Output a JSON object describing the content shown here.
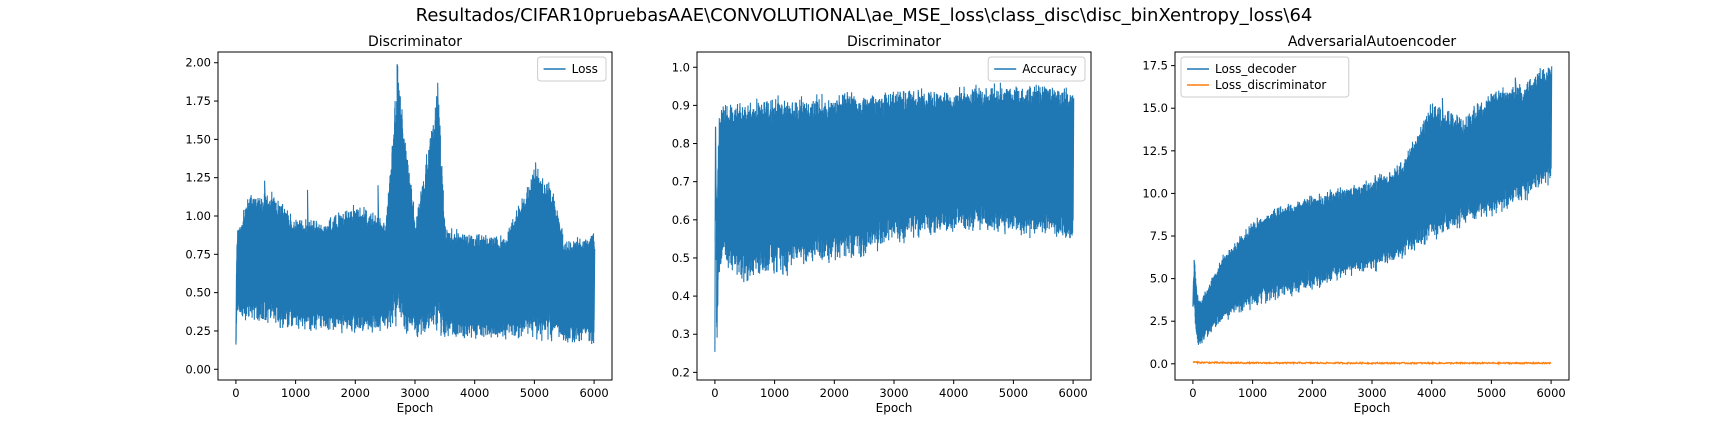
{
  "figure": {
    "suptitle": "Resultados/CIFAR10pruebasAAE\\CONVOLUTIONAL\\ae_MSE_loss\\class_disc\\disc_binXentropy_loss\\64"
  },
  "colors": {
    "blue": "#1f77b4",
    "orange": "#ff7f0e"
  },
  "chart_data": [
    {
      "type": "line",
      "title": "Discriminator",
      "xlabel": "Epoch",
      "ylabel": "",
      "xlim": [
        -300,
        6300
      ],
      "ylim": [
        -0.07,
        2.07
      ],
      "xticks": [
        0,
        1000,
        2000,
        3000,
        4000,
        5000,
        6000
      ],
      "xtick_labels": [
        "0",
        "1000",
        "2000",
        "3000",
        "4000",
        "5000",
        "6000"
      ],
      "yticks": [
        0,
        0.25,
        0.5,
        0.75,
        1.0,
        1.25,
        1.5,
        1.75,
        2.0
      ],
      "ytick_labels": [
        "0.00",
        "0.25",
        "0.50",
        "0.75",
        "1.00",
        "1.25",
        "1.50",
        "1.75",
        "2.00"
      ],
      "legend_position": "top-right",
      "series": [
        {
          "name": "Loss",
          "color": "#1f77b4",
          "x": [
            0,
            20,
            50,
            100,
            200,
            300,
            500,
            1000,
            1500,
            2000,
            2500,
            2700,
            3000,
            3380,
            3500,
            4000,
            4500,
            5000,
            5300,
            5500,
            6000
          ],
          "y_low": [
            0.03,
            0.35,
            0.32,
            0.3,
            0.29,
            0.28,
            0.27,
            0.25,
            0.23,
            0.22,
            0.21,
            0.21,
            0.2,
            0.2,
            0.19,
            0.19,
            0.18,
            0.17,
            0.17,
            0.16,
            0.15
          ],
          "y_high": [
            0.77,
            0.97,
            0.92,
            1.02,
            1.17,
            1.15,
            1.2,
            1.0,
            0.98,
            1.1,
            0.98,
            1.99,
            0.98,
            1.87,
            0.95,
            0.9,
            0.88,
            1.35,
            1.2,
            0.85,
            0.9
          ],
          "spikes": [
            [
              2700,
              1.99
            ],
            [
              3380,
              1.87
            ],
            [
              5020,
              1.35
            ],
            [
              3450,
              1.1
            ],
            [
              330,
              1.22
            ],
            [
              480,
              1.23
            ],
            [
              1200,
              1.17
            ],
            [
              2380,
              1.2
            ],
            [
              5290,
              1.21
            ]
          ]
        }
      ]
    },
    {
      "type": "line",
      "title": "Discriminator",
      "xlabel": "Epoch",
      "ylabel": "",
      "xlim": [
        -300,
        6300
      ],
      "ylim": [
        0.18,
        1.04
      ],
      "xticks": [
        0,
        1000,
        2000,
        3000,
        4000,
        5000,
        6000
      ],
      "xtick_labels": [
        "0",
        "1000",
        "2000",
        "3000",
        "4000",
        "5000",
        "6000"
      ],
      "yticks": [
        0.2,
        0.3,
        0.4,
        0.5,
        0.6,
        0.7,
        0.8,
        0.9,
        1.0
      ],
      "ytick_labels": [
        "0.2",
        "0.3",
        "0.4",
        "0.5",
        "0.6",
        "0.7",
        "0.8",
        "0.9",
        "1.0"
      ],
      "legend_position": "top-right",
      "series": [
        {
          "name": "Accuracy",
          "color": "#1f77b4",
          "x": [
            0,
            10,
            30,
            60,
            100,
            200,
            500,
            1000,
            1500,
            2000,
            2500,
            3000,
            3500,
            4000,
            4500,
            5000,
            5500,
            6000
          ],
          "y_low": [
            0.22,
            0.95,
            0.21,
            0.43,
            0.47,
            0.46,
            0.43,
            0.44,
            0.47,
            0.48,
            0.5,
            0.53,
            0.55,
            0.56,
            0.56,
            0.55,
            0.55,
            0.52
          ],
          "y_high": [
            1.0,
            0.6,
            0.7,
            0.87,
            0.9,
            0.91,
            0.92,
            0.93,
            0.93,
            0.94,
            0.94,
            0.95,
            0.95,
            0.95,
            0.96,
            0.96,
            0.96,
            0.95
          ],
          "spikes": []
        }
      ]
    },
    {
      "type": "line",
      "title": "AdversarialAutoencoder",
      "xlabel": "Epoch",
      "ylabel": "",
      "xlim": [
        -300,
        6300
      ],
      "ylim": [
        -0.95,
        18.3
      ],
      "xticks": [
        0,
        1000,
        2000,
        3000,
        4000,
        5000,
        6000
      ],
      "xtick_labels": [
        "0",
        "1000",
        "2000",
        "3000",
        "4000",
        "5000",
        "6000"
      ],
      "yticks": [
        0,
        2.5,
        5.0,
        7.5,
        10.0,
        12.5,
        15.0,
        17.5
      ],
      "ytick_labels": [
        "0.0",
        "2.5",
        "5.0",
        "7.5",
        "10.0",
        "12.5",
        "15.0",
        "17.5"
      ],
      "legend_position": "top-left",
      "series": [
        {
          "name": "Loss_decoder",
          "color": "#1f77b4",
          "x": [
            0,
            20,
            50,
            100,
            200,
            500,
            1000,
            1500,
            2000,
            2500,
            3000,
            3500,
            4000,
            4500,
            5000,
            5500,
            6000
          ],
          "y_low": [
            3.0,
            3.5,
            1.5,
            0.9,
            1.4,
            2.4,
            3.2,
            3.8,
            4.2,
            4.9,
            5.3,
            6.0,
            7.0,
            8.0,
            8.5,
            9.3,
            10.5
          ],
          "y_high": [
            5.0,
            6.1,
            4.5,
            3.8,
            4.3,
            6.5,
            8.5,
            9.5,
            10.0,
            10.5,
            11.0,
            12.0,
            15.6,
            14.5,
            16.3,
            16.5,
            18.0
          ],
          "spikes": [
            [
              20,
              6.1
            ],
            [
              4180,
              15.6
            ],
            [
              5050,
              16.3
            ],
            [
              5400,
              16.8
            ],
            [
              5990,
              18.0
            ]
          ]
        },
        {
          "name": "Loss_discriminator",
          "color": "#ff7f0e",
          "x": [
            0,
            100,
            500,
            1000,
            2000,
            3000,
            4000,
            5000,
            6000
          ],
          "y": [
            0.1,
            0.08,
            0.06,
            0.05,
            0.05,
            0.04,
            0.04,
            0.04,
            0.04
          ]
        }
      ]
    }
  ]
}
